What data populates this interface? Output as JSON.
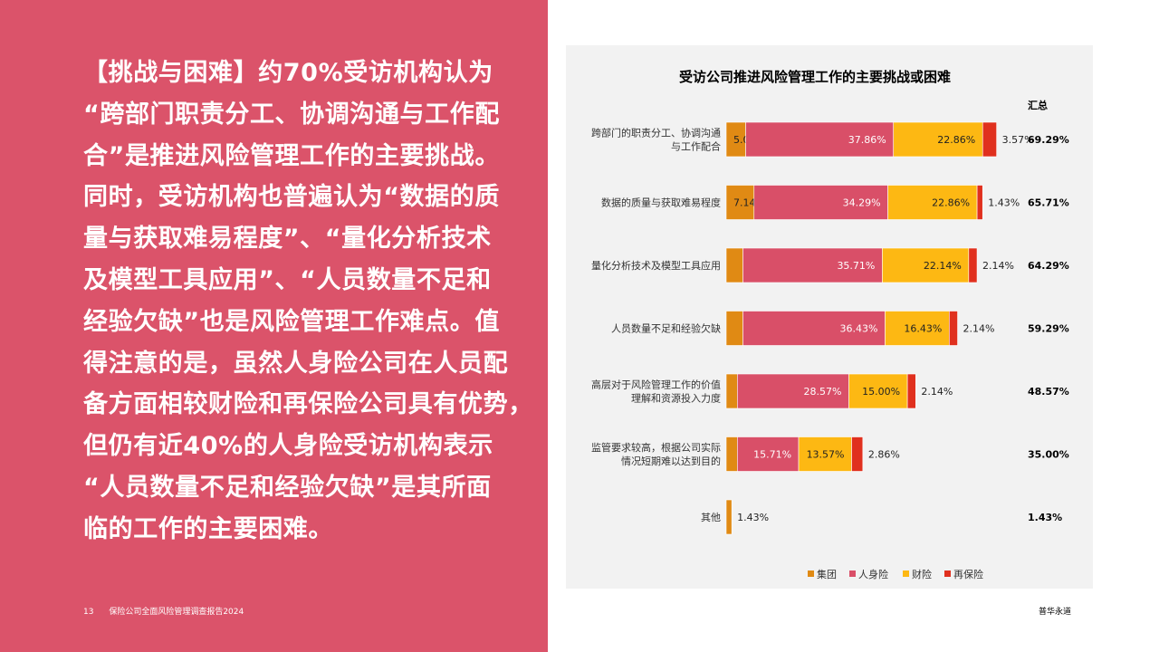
{
  "left_text": {
    "lines": [
      "【挑战与困难】约70%受访机构认为",
      "“跨部门职责分工、协调沟通与工作配",
      "合”是推进风险管理工作的主要挑战。",
      "同时，受访机构也普遍认为“数据的质",
      "量与获取难易程度”、“量化分析技术",
      "及模型工具应用”、“人员数量不足和",
      "经验欠缺”也是风险管理工作难点。值",
      "得注意的是，虽然人身险公司在人员配",
      "备方面相较财险和再保险公司具有优势，",
      "但仍有近40%的人身险受访机构表示",
      "“人员数量不足和经验欠缺”是其所面",
      "临的工作的主要困难。"
    ]
  },
  "footer": {
    "page_number": "13",
    "report_title": "保险公司全面风险管理调查报告2024",
    "brand": "普华永道"
  },
  "colors": {
    "panel": "#db536a",
    "group": "#e08a14",
    "life": "#d94f68",
    "property": "#fdb813",
    "reinsurance": "#e0301e"
  },
  "chart_data": {
    "type": "bar",
    "orientation": "horizontal",
    "stacked": true,
    "title": "受访公司推进风险管理工作的主要挑战或困难",
    "total_header": "汇总",
    "categories": [
      [
        "跨部门的职责分工、协调沟通",
        "与工作配合"
      ],
      [
        "数据的质量与获取难易程度"
      ],
      [
        "量化分析技术及模型工具应用"
      ],
      [
        "人员数量不足和经验欠缺"
      ],
      [
        "高层对于风险管理工作的价值",
        "理解和资源投入力度"
      ],
      [
        "监管要求较高，根据公司实际",
        "情况短期难以达到目的"
      ],
      [
        "其他"
      ]
    ],
    "series": [
      {
        "name": "集团",
        "color": "#e08a14",
        "values": [
          5.0,
          7.14,
          4.29,
          4.29,
          2.86,
          2.86,
          1.43
        ],
        "labels": [
          "5.00%",
          "7.14%",
          "4.29%",
          "4.29%",
          "2.86%",
          "2.86%",
          "1.43%"
        ]
      },
      {
        "name": "人身险",
        "color": "#d94f68",
        "values": [
          37.86,
          34.29,
          35.71,
          36.43,
          28.57,
          15.71,
          0
        ],
        "labels": [
          "37.86%",
          "34.29%",
          "35.71%",
          "36.43%",
          "28.57%",
          "15.71%",
          ""
        ]
      },
      {
        "name": "财险",
        "color": "#fdb813",
        "values": [
          22.86,
          22.86,
          22.14,
          16.43,
          15.0,
          13.57,
          0
        ],
        "labels": [
          "22.86%",
          "22.86%",
          "22.14%",
          "16.43%",
          "15.00%",
          "13.57%",
          ""
        ]
      },
      {
        "name": "再保险",
        "color": "#e0301e",
        "values": [
          3.57,
          1.43,
          2.14,
          2.14,
          2.14,
          2.86,
          0
        ],
        "labels": [
          "3.57%",
          "1.43%",
          "2.14%",
          "2.14%",
          "2.14%",
          "2.86%",
          ""
        ]
      }
    ],
    "totals": [
      "69.29%",
      "65.71%",
      "64.29%",
      "59.29%",
      "48.57%",
      "35.00%",
      "1.43%"
    ],
    "legend": "bottom"
  }
}
